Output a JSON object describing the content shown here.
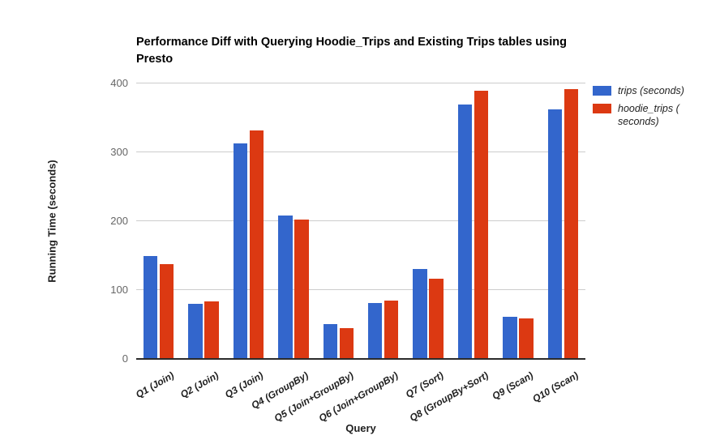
{
  "chart_data": {
    "type": "bar",
    "title": "Performance Diff with Querying Hoodie_Trips and Existing Trips tables using Presto",
    "xlabel": "Query",
    "ylabel": "Running Time (seconds)",
    "ylim": [
      0,
      400
    ],
    "yticks": [
      0,
      100,
      200,
      300,
      400
    ],
    "grid": "horizontal-only",
    "legend_position": "right",
    "categories": [
      "Q1 (Join)",
      "Q2 (Join)",
      "Q3 (Join)",
      "Q4 (GroupBy)",
      "Q5 (Join+GroupBy)",
      "Q6 (Join+GroupBy)",
      "Q7 (Sort)",
      "Q8 (GroupBy+Sort)",
      "Q9 (Scan)",
      "Q10 (Scan)"
    ],
    "series": [
      {
        "name": "trips (seconds)",
        "display": "trips (seconds)",
        "color": "#3366cc",
        "values": [
          150,
          80,
          313,
          208,
          51,
          81,
          131,
          370,
          61,
          362
        ]
      },
      {
        "name": "hoodie_trips (seconds)",
        "display": "hoodie_trips (\nseconds)",
        "color": "#dc3912",
        "values": [
          138,
          84,
          332,
          202,
          45,
          85,
          117,
          390,
          59,
          392
        ]
      }
    ],
    "colors": {
      "gridline": "#cccccc",
      "axis_baseline": "#2b2b2b",
      "tick_label": "#666666",
      "text": "#1f1f1f"
    }
  }
}
